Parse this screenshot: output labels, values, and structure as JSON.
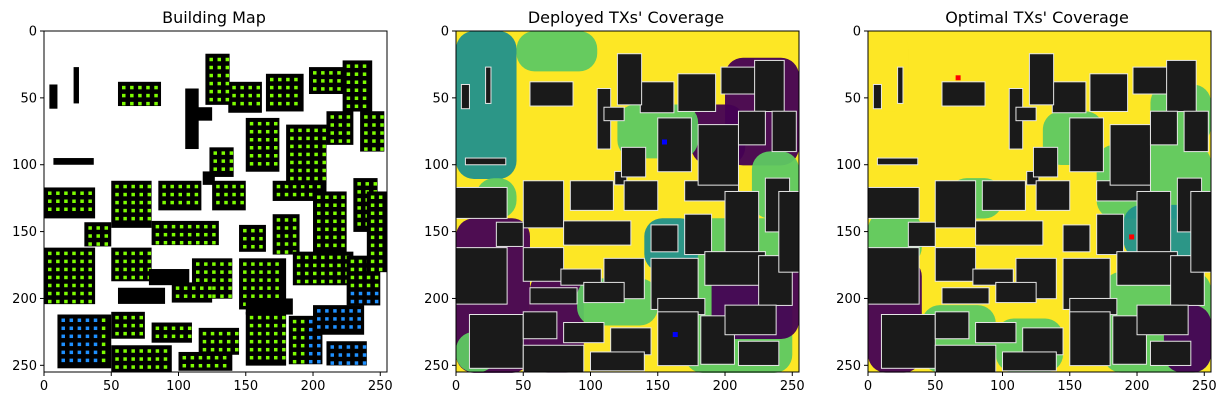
{
  "chart_data": [
    {
      "type": "heatmap",
      "title": "Building Map",
      "xlim": [
        0,
        255
      ],
      "ylim": [
        255,
        0
      ],
      "xticks": [
        0,
        50,
        100,
        150,
        200,
        250
      ],
      "yticks": [
        0,
        50,
        100,
        150,
        200,
        250
      ],
      "grid": false,
      "colors": {
        "background": "#ffffff",
        "building": "#000000",
        "grid_points": "#7cfc00",
        "highlight_points": "#1e90ff"
      }
    },
    {
      "type": "heatmap",
      "title": "Deployed TXs' Coverage",
      "xlim": [
        0,
        255
      ],
      "ylim": [
        255,
        0
      ],
      "xticks": [
        0,
        50,
        100,
        150,
        200,
        250
      ],
      "yticks": [
        0,
        50,
        100,
        150,
        200,
        250
      ],
      "grid": false,
      "tx_markers": [
        {
          "x": 155,
          "y": 83,
          "color": "#0000ff"
        },
        {
          "x": 163,
          "y": 227,
          "color": "#0000ff"
        }
      ],
      "colors": {
        "levels": [
          "#440154",
          "#21918c",
          "#5ec962",
          "#fde725"
        ],
        "building": "#1a1a1a"
      }
    },
    {
      "type": "heatmap",
      "title": "Optimal TXs' Coverage",
      "xlim": [
        0,
        255
      ],
      "ylim": [
        255,
        0
      ],
      "xticks": [
        0,
        50,
        100,
        150,
        200,
        250
      ],
      "yticks": [
        0,
        50,
        100,
        150,
        200,
        250
      ],
      "grid": false,
      "tx_markers": [
        {
          "x": 67,
          "y": 35,
          "color": "#ff0000"
        },
        {
          "x": 196,
          "y": 154,
          "color": "#ff0000"
        }
      ],
      "colors": {
        "levels": [
          "#440154",
          "#21918c",
          "#5ec962",
          "#fde725"
        ],
        "building": "#1a1a1a"
      }
    }
  ]
}
